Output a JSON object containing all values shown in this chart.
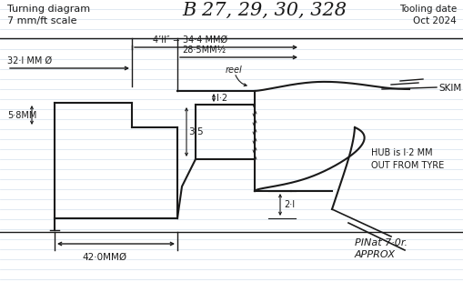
{
  "title_left": "Turning diagram\n7 mm/ft scale",
  "title_center": "B 27, 29, 30, 328",
  "title_right": "Tooling date\nOct 2024",
  "bg_color": "#ffffff",
  "line_color": "#1a1a1a",
  "ruled_line_color": "#c8d8e8",
  "label_32": "32·I MM Ø",
  "label_411": "4’II″ = 34·4 MMØ",
  "label_285": "28·5MM½",
  "label_58": "5·8MM",
  "label_12": "I·2",
  "label_35": "3·5",
  "label_21": "2·I",
  "label_42": "42·0MMØ",
  "label_skim": "SKIM",
  "label_hub": "HUB is I·2 MM\nOUT FROM TYRE",
  "label_reel": "reel",
  "label_pinat": "PINat 7·0r.\nAPPROX"
}
